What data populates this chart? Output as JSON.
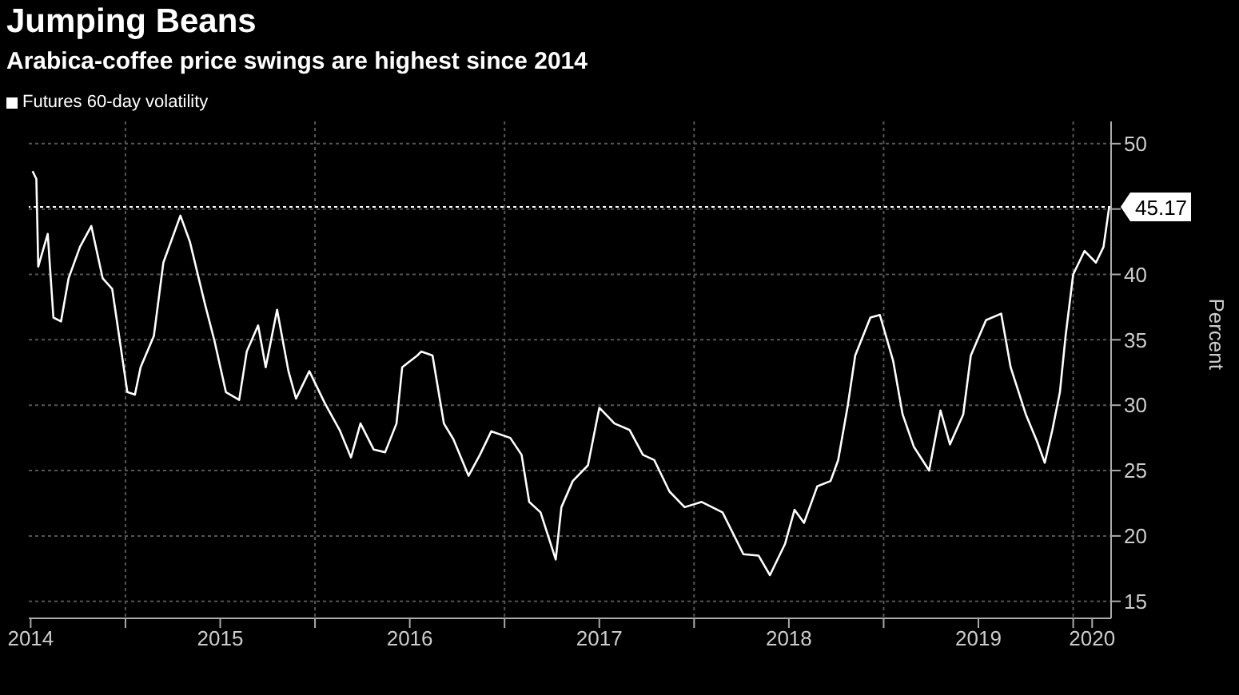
{
  "chart_data": {
    "type": "line",
    "title": "Jumping Beans",
    "subtitle": "Arabica-coffee price swings are highest since 2014",
    "ylabel": "Percent",
    "x": [
      2014.51,
      2014.53,
      2014.54,
      2014.59,
      2014.62,
      2014.66,
      2014.7,
      2014.76,
      2014.82,
      2014.88,
      2014.93,
      2015.01,
      2015.05,
      2015.08,
      2015.15,
      2015.2,
      2015.29,
      2015.34,
      2015.42,
      2015.47,
      2015.53,
      2015.6,
      2015.64,
      2015.7,
      2015.74,
      2015.8,
      2015.86,
      2015.9,
      2015.97,
      2016.05,
      2016.13,
      2016.19,
      2016.24,
      2016.31,
      2016.37,
      2016.43,
      2016.46,
      2016.54,
      2016.56,
      2016.62,
      2016.68,
      2016.73,
      2016.81,
      2016.87,
      2016.93,
      2017.03,
      2017.09,
      2017.13,
      2017.19,
      2017.27,
      2017.3,
      2017.36,
      2017.44,
      2017.5,
      2017.58,
      2017.66,
      2017.73,
      2017.79,
      2017.87,
      2017.95,
      2018.04,
      2018.15,
      2018.26,
      2018.34,
      2018.4,
      2018.48,
      2018.53,
      2018.58,
      2018.65,
      2018.72,
      2018.76,
      2018.81,
      2018.85,
      2018.93,
      2018.98,
      2019.05,
      2019.1,
      2019.16,
      2019.24,
      2019.3,
      2019.35,
      2019.42,
      2019.46,
      2019.54,
      2019.62,
      2019.67,
      2019.75,
      2019.81,
      2019.85,
      2019.89,
      2019.93,
      2019.96,
      2020.0,
      2020.06,
      2020.12,
      2020.16,
      2020.19
    ],
    "series": [
      {
        "name": "Futures 60-day volatility",
        "color": "#ffffff",
        "values": [
          47.9,
          47.3,
          40.6,
          43.1,
          36.7,
          36.4,
          39.7,
          42.1,
          43.7,
          39.7,
          38.9,
          31.0,
          30.8,
          32.9,
          35.3,
          40.9,
          44.5,
          42.5,
          37.7,
          34.9,
          31.0,
          30.4,
          34.1,
          36.1,
          32.9,
          37.3,
          32.6,
          30.5,
          32.6,
          30.2,
          28.1,
          26.0,
          28.6,
          26.6,
          26.4,
          28.6,
          32.9,
          33.8,
          34.1,
          33.8,
          28.6,
          27.4,
          24.6,
          26.2,
          28.0,
          27.5,
          26.2,
          22.6,
          21.8,
          18.2,
          22.2,
          24.2,
          25.4,
          29.8,
          28.6,
          28.1,
          26.2,
          25.8,
          23.4,
          22.2,
          22.6,
          21.8,
          18.6,
          18.5,
          17.0,
          19.4,
          22.0,
          21.0,
          23.8,
          24.2,
          25.8,
          29.9,
          33.8,
          36.7,
          36.9,
          33.4,
          29.3,
          26.8,
          25.0,
          29.6,
          27.0,
          29.3,
          33.8,
          36.5,
          37.0,
          32.9,
          29.3,
          27.2,
          25.6,
          28.1,
          31.0,
          35.3,
          40.0,
          41.8,
          40.9,
          42.1,
          45.17
        ]
      }
    ],
    "xlim": [
      2014.49,
      2020.2
    ],
    "xticks": [
      {
        "value": 2014.5,
        "label": "2014"
      },
      {
        "value": 2015,
        "label": null
      },
      {
        "value": 2015.5,
        "label": "2015"
      },
      {
        "value": 2016,
        "label": null
      },
      {
        "value": 2016.5,
        "label": "2016"
      },
      {
        "value": 2017,
        "label": null
      },
      {
        "value": 2017.5,
        "label": "2017"
      },
      {
        "value": 2018,
        "label": null
      },
      {
        "value": 2018.5,
        "label": "2018"
      },
      {
        "value": 2019,
        "label": null
      },
      {
        "value": 2019.5,
        "label": "2019"
      },
      {
        "value": 2020,
        "label": null
      },
      {
        "value": 2020.1,
        "label": "2020"
      }
    ],
    "ylim": [
      13.7,
      51.7
    ],
    "yticks": [
      15,
      20,
      25,
      30,
      35,
      40,
      {
        "value": 45,
        "label": null
      },
      50
    ],
    "ref_lines": [
      {
        "axis": "y",
        "value": 45.17,
        "label": "45.17",
        "color": "#ffffff",
        "line_style": "dotted"
      }
    ],
    "grid": true,
    "legend": "top left",
    "marker": "none",
    "line_style": "solid"
  }
}
